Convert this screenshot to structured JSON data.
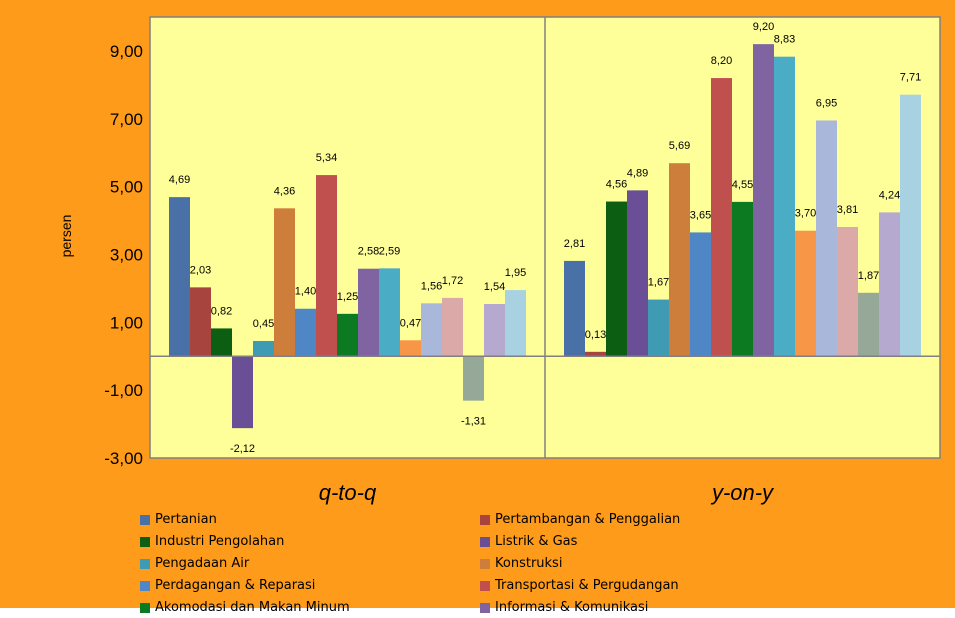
{
  "chart_data": {
    "type": "bar",
    "ylabel": "persen",
    "ylim": [
      -3,
      10
    ],
    "yticks": [
      "9,00",
      "7,00",
      "5,00",
      "3,00",
      "1,00",
      "-1,00",
      "-3,00"
    ],
    "ytick_values": [
      9,
      7,
      5,
      3,
      1,
      -1,
      -3
    ],
    "categories": [
      "q-to-q",
      "y-on-y"
    ],
    "grid": false,
    "legend_position": "bottom",
    "series": [
      {
        "name": "Pertanian",
        "color": "#4a70a8",
        "values": [
          4.69,
          2.81
        ],
        "labels": [
          "4,69",
          "2,81"
        ]
      },
      {
        "name": "Pertambangan & Penggalian",
        "color": "#a8443e",
        "values": [
          2.03,
          0.13
        ],
        "labels": [
          "2,03",
          "0,13"
        ]
      },
      {
        "name": "Industri Pengolahan",
        "color": "#0c5e12",
        "values": [
          0.82,
          4.56
        ],
        "labels": [
          "0,82",
          "4,56"
        ]
      },
      {
        "name": "Listrik & Gas",
        "color": "#6a4f96",
        "values": [
          -2.12,
          4.89
        ],
        "labels": [
          "-2,12",
          "4,89"
        ]
      },
      {
        "name": "Pengadaan Air",
        "color": "#3f9bb3",
        "values": [
          0.45,
          1.67
        ],
        "labels": [
          "0,45",
          "1,67"
        ]
      },
      {
        "name": "Konstruksi",
        "color": "#cc7e3a",
        "values": [
          4.36,
          5.69
        ],
        "labels": [
          "4,36",
          "5,69"
        ]
      },
      {
        "name": "Perdagangan & Reparasi",
        "color": "#4f86c6",
        "values": [
          1.4,
          3.65
        ],
        "labels": [
          "1,40",
          "3,65"
        ]
      },
      {
        "name": "Transportasi & Pergudangan",
        "color": "#c0504d",
        "values": [
          5.34,
          8.2
        ],
        "labels": [
          "5,34",
          "8,20"
        ]
      },
      {
        "name": "Akomodasi dan Makan Minum",
        "color": "#0b7a20",
        "values": [
          1.25,
          4.55
        ],
        "labels": [
          "1,25",
          "4,55"
        ]
      },
      {
        "name": "Informasi & Komunikasi",
        "color": "#8064a2",
        "values": [
          2.58,
          9.2
        ],
        "labels": [
          "2,58",
          "9,20"
        ]
      },
      {
        "name": "",
        "color": "#4bacc6",
        "values": [
          2.59,
          8.83
        ],
        "labels": [
          "2,59",
          "8,83"
        ]
      },
      {
        "name": "",
        "color": "#f79646",
        "values": [
          0.47,
          3.7
        ],
        "labels": [
          "0,47",
          "3,70"
        ]
      },
      {
        "name": "",
        "color": "#a9b7da",
        "values": [
          1.56,
          6.95
        ],
        "labels": [
          "1,56",
          "6,95"
        ]
      },
      {
        "name": "",
        "color": "#dba9a7",
        "values": [
          1.72,
          3.81
        ],
        "labels": [
          "1,72",
          "3,81"
        ]
      },
      {
        "name": "",
        "color": "#96a998",
        "values": [
          -1.31,
          1.87
        ],
        "labels": [
          "-1,31",
          "1,87"
        ]
      },
      {
        "name": "",
        "color": "#b5a9cf",
        "values": [
          1.54,
          4.24
        ],
        "labels": [
          "1,54",
          "4,24"
        ]
      },
      {
        "name": "",
        "color": "#a8d1e2",
        "values": [
          1.95,
          7.71
        ],
        "labels": [
          "1,95",
          "7,71"
        ]
      }
    ]
  }
}
